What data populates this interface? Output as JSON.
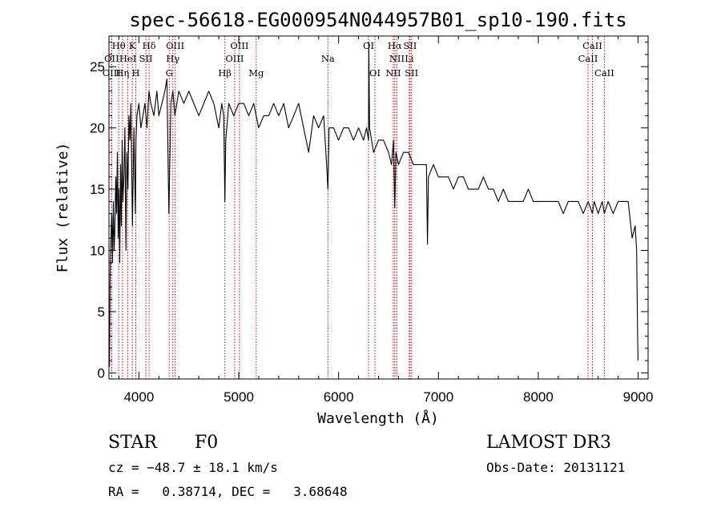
{
  "chart_data": {
    "type": "line",
    "title": "spec-56618-EG000954N044957B01_sp10-190.fits",
    "xlabel": "Wavelength (Å)",
    "ylabel": "Flux (relative)",
    "xlim": [
      3700,
      9100
    ],
    "ylim": [
      -0.5,
      27.5
    ],
    "x_ticks": [
      4000,
      5000,
      6000,
      7000,
      8000,
      9000
    ],
    "y_ticks": [
      0,
      5,
      10,
      15,
      20,
      25
    ],
    "grid": false,
    "legend": "none",
    "series": [
      {
        "color": "#000000",
        "x": [
          3705,
          3712,
          3720,
          3728,
          3736,
          3744,
          3752,
          3760,
          3768,
          3776,
          3784,
          3792,
          3800,
          3808,
          3816,
          3824,
          3832,
          3840,
          3850,
          3860,
          3870,
          3880,
          3890,
          3900,
          3910,
          3920,
          3935,
          3950,
          3965,
          3970,
          3980,
          4000,
          4020,
          4040,
          4060,
          4080,
          4100,
          4120,
          4150,
          4180,
          4200,
          4230,
          4260,
          4280,
          4300,
          4320,
          4340,
          4360,
          4380,
          4400,
          4450,
          4500,
          4550,
          4600,
          4650,
          4700,
          4750,
          4800,
          4830,
          4850,
          4861,
          4870,
          4900,
          4950,
          5000,
          5050,
          5100,
          5150,
          5200,
          5250,
          5300,
          5350,
          5400,
          5450,
          5500,
          5550,
          5600,
          5650,
          5700,
          5750,
          5800,
          5850,
          5880,
          5893,
          5905,
          5950,
          6000,
          6050,
          6100,
          6150,
          6200,
          6250,
          6280,
          6300,
          6303,
          6310,
          6350,
          6400,
          6450,
          6500,
          6530,
          6550,
          6563,
          6575,
          6600,
          6650,
          6700,
          6750,
          6800,
          6850,
          6880,
          6890,
          6900,
          6950,
          7000,
          7050,
          7100,
          7150,
          7200,
          7250,
          7300,
          7350,
          7400,
          7450,
          7500,
          7550,
          7600,
          7650,
          7700,
          7750,
          7800,
          7850,
          7900,
          7950,
          8000,
          8050,
          8100,
          8150,
          8200,
          8250,
          8300,
          8350,
          8400,
          8450,
          8500,
          8542,
          8560,
          8600,
          8640,
          8662,
          8700,
          8750,
          8800,
          8850,
          8900,
          8940,
          8970,
          8985,
          8995,
          9000
        ],
        "y": [
          0.5,
          8,
          11,
          13,
          9,
          14,
          10,
          12,
          16,
          13,
          18,
          11,
          15,
          9,
          17,
          12,
          19,
          14,
          16,
          20,
          10,
          18,
          15,
          21,
          19,
          22,
          12,
          20,
          13,
          19,
          21,
          22,
          20,
          21,
          22,
          20,
          23,
          22,
          21,
          23,
          21,
          22,
          23,
          24,
          13,
          22,
          23,
          21,
          22,
          23,
          22,
          23,
          22,
          21,
          22,
          23,
          22,
          20,
          22,
          21,
          14,
          19,
          22,
          21,
          22,
          22,
          21,
          22,
          20,
          21,
          21,
          22,
          21,
          22,
          20,
          21,
          22,
          20,
          18,
          21,
          20,
          21,
          17,
          15,
          20,
          20,
          19,
          20,
          20,
          19,
          20,
          19,
          20,
          19,
          27,
          20,
          18,
          19,
          19,
          18,
          17,
          19,
          13.5,
          18,
          17,
          18,
          18,
          17,
          17,
          17,
          17,
          10.5,
          16,
          17,
          16,
          16,
          16,
          15,
          16,
          16,
          15,
          15,
          15,
          16,
          15,
          15,
          14,
          15,
          14,
          14,
          14,
          14,
          15,
          14,
          14,
          14,
          14,
          14,
          14,
          13,
          14,
          14,
          14,
          13,
          14,
          13,
          14,
          13,
          14,
          13,
          14,
          13,
          14,
          14,
          14,
          11,
          12,
          10,
          3,
          1
        ]
      }
    ],
    "line_markers": [
      {
        "label": "Hθ",
        "x": 3798,
        "row": 0
      },
      {
        "label": "OII",
        "x": 3727,
        "row": 1
      },
      {
        "label": "OIII",
        "x": 3727,
        "row": 2
      },
      {
        "label": "K",
        "x": 3934,
        "row": 0
      },
      {
        "label": "HeI",
        "x": 3889,
        "row": 1
      },
      {
        "label": "Hη",
        "x": 3835,
        "row": 2
      },
      {
        "label": "Hδ",
        "x": 4102,
        "row": 0
      },
      {
        "label": "SII",
        "x": 4070,
        "row": 1
      },
      {
        "label": "H",
        "x": 3969,
        "row": 2
      },
      {
        "label": "OIII",
        "x": 4363,
        "row": 0
      },
      {
        "label": "Hγ",
        "x": 4340,
        "row": 1
      },
      {
        "label": "G",
        "x": 4304,
        "row": 2
      },
      {
        "label": "OIII",
        "x": 5007,
        "row": 0
      },
      {
        "label": "OIII",
        "x": 4959,
        "row": 1
      },
      {
        "label": "Hβ",
        "x": 4861,
        "row": 2
      },
      {
        "label": "Mg",
        "x": 5175,
        "row": 2
      },
      {
        "label": "Na",
        "x": 5893,
        "row": 1
      },
      {
        "label": "OI",
        "x": 6300,
        "row": 0
      },
      {
        "label": "OI",
        "x": 6364,
        "row": 2
      },
      {
        "label": "Hα",
        "x": 6563,
        "row": 0
      },
      {
        "label": "SII",
        "x": 6716,
        "row": 0
      },
      {
        "label": "NII",
        "x": 6584,
        "row": 1
      },
      {
        "label": "Li",
        "x": 6708,
        "row": 1
      },
      {
        "label": "NII",
        "x": 6548,
        "row": 2
      },
      {
        "label": "SII",
        "x": 6731,
        "row": 2
      },
      {
        "label": "CaII",
        "x": 8542,
        "row": 0
      },
      {
        "label": "CaII",
        "x": 8498,
        "row": 1
      },
      {
        "label": "CaII",
        "x": 8662,
        "row": 2
      }
    ],
    "marker_color": "#cc0000"
  },
  "info": {
    "class": "STAR",
    "subclass": "F0",
    "survey": "LAMOST DR3",
    "cz": "cz = −48.7 ± 18.1 km/s",
    "obsdate": "Obs-Date: 20131121",
    "radec": "RA =   0.38714, DEC =   3.68648"
  }
}
